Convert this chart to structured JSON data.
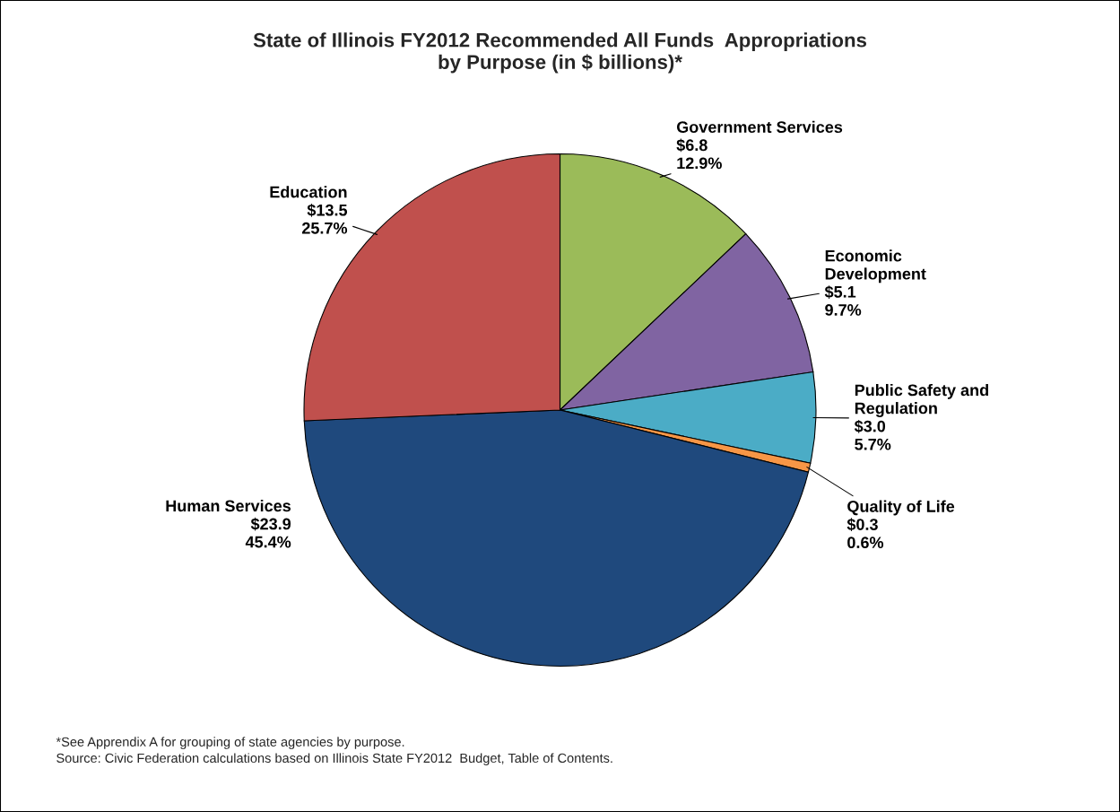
{
  "chart_data": {
    "type": "pie",
    "title": "State of Illinois FY2012 Recommended All Funds  Appropriations\nby Purpose (in $ billions)*",
    "categories": [
      "Government Services",
      "Economic\nDevelopment",
      "Public Safety and\nRegulation",
      "Quality of Life",
      "Human Services",
      "Education"
    ],
    "values": [
      6.8,
      5.1,
      3.0,
      0.3,
      23.9,
      13.5
    ],
    "value_labels": [
      "$6.8\n12.9%",
      "$5.1\n9.7%",
      "$3.0\n5.7%",
      "$0.3\n0.6%",
      "$23.9\n45.4%",
      "$13.5\n25.7%"
    ],
    "colors": [
      "#9bbb59",
      "#8064a2",
      "#4bacc6",
      "#f79646",
      "#1f497d",
      "#c0504d"
    ],
    "legend": false,
    "annotations": [
      "*See Apprendix A for grouping of state agencies by purpose.",
      "Source: Civic Federation calculations based on Illinois State FY2012  Budget, Table of Contents."
    ]
  }
}
